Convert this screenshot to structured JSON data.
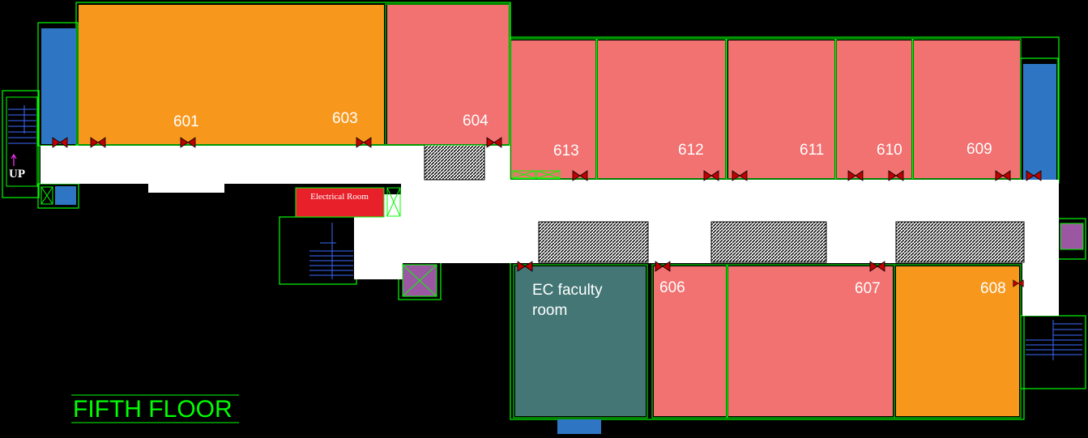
{
  "title": "FIFTH FLOOR",
  "up_label": "UP",
  "colors": {
    "background": "#000000",
    "wall": "#00ff00",
    "corridor": "#ffffff",
    "orange_room": "#f7981d",
    "pink_room": "#f27171",
    "teal_room": "#447676",
    "blue_room": "#2e76c3",
    "electrical": "#e8202a",
    "purple": "#9b57a1",
    "door": "#c00000",
    "stairs": "#3b6bff"
  },
  "rooms": [
    {
      "id": "r601",
      "label": "601"
    },
    {
      "id": "r603",
      "label": "603"
    },
    {
      "id": "r604",
      "label": "604"
    },
    {
      "id": "r606",
      "label": "606"
    },
    {
      "id": "r607",
      "label": "607"
    },
    {
      "id": "r608",
      "label": "608"
    },
    {
      "id": "r609",
      "label": "609"
    },
    {
      "id": "r610",
      "label": "610"
    },
    {
      "id": "r611",
      "label": "611"
    },
    {
      "id": "r612",
      "label": "612"
    },
    {
      "id": "r613",
      "label": "613"
    }
  ],
  "ec_faculty_room": {
    "line1": "EC faculty",
    "line2": "room"
  },
  "electrical_room": "Electrical Room"
}
